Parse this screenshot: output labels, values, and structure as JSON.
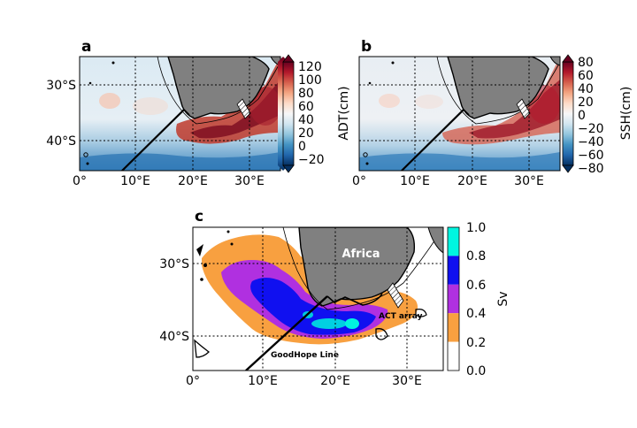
{
  "panels": [
    {
      "label": "a",
      "lat_ticks": [
        "30°S",
        "40°S"
      ],
      "lon_ticks": [
        "0°",
        "10°E",
        "20°E",
        "30°E"
      ],
      "colorbar": {
        "label": "ADT(cm)",
        "ticks": [
          "120",
          "100",
          "80",
          "60",
          "40",
          "20",
          "0",
          "−20"
        ],
        "colors": [
          "#67001f",
          "#b2182b",
          "#d6604d",
          "#f4a582",
          "#fddbc7",
          "#f7f7f7",
          "#d1e5f0",
          "#92c5de",
          "#4393c3",
          "#2166ac",
          "#053061"
        ]
      }
    },
    {
      "label": "b",
      "lat_ticks": [
        "30°S",
        "40°S"
      ],
      "lon_ticks": [
        "0°",
        "10°E",
        "20°E",
        "30°E"
      ],
      "colorbar": {
        "label": "SSH(cm)",
        "ticks": [
          "80",
          "60",
          "40",
          "20",
          "0",
          "−20",
          "−40",
          "−60",
          "−80"
        ],
        "colors": [
          "#67001f",
          "#b2182b",
          "#d6604d",
          "#f4a582",
          "#fddbc7",
          "#f7f7f7",
          "#d1e5f0",
          "#92c5de",
          "#4393c3",
          "#2166ac",
          "#053061"
        ]
      }
    },
    {
      "label": "c",
      "lat_ticks": [
        "30°S",
        "40°S"
      ],
      "lon_ticks": [
        "0°",
        "10°E",
        "20°E",
        "30°E"
      ],
      "colorbar": {
        "label": "Sv",
        "ticks": [
          "1.0",
          "0.8",
          "0.6",
          "0.4",
          "0.2",
          "0.0"
        ],
        "colors": [
          "#00f5e0",
          "#1010f0",
          "#b030e0",
          "#f8a040",
          "#ffffff"
        ]
      },
      "annotations": {
        "continent": "Africa",
        "array": "ACT array",
        "line": "GoodHope Line"
      }
    }
  ],
  "map_colors": {
    "land": "#808080",
    "coast": "#000000"
  }
}
